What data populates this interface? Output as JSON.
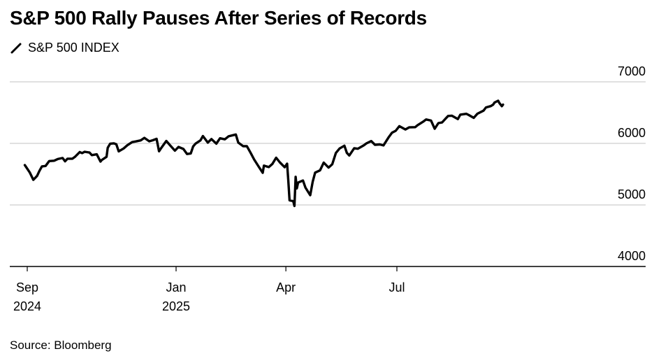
{
  "chart_data": {
    "type": "line",
    "title": "S&P 500 Rally Pauses After Series of Records",
    "xlabel": "",
    "ylabel": "",
    "ylim": [
      4000,
      7000
    ],
    "yticks": [
      4000,
      5000,
      6000,
      7000
    ],
    "y_axis_side": "right",
    "grid": "horizontal",
    "legend_position": "top-left",
    "xticks": [
      {
        "date": "2024-09-01",
        "line1": "Sep",
        "line2": "2024"
      },
      {
        "date": "2025-01-01",
        "line1": "Jan",
        "line2": "2025"
      },
      {
        "date": "2025-04-01",
        "line1": "Apr",
        "line2": ""
      },
      {
        "date": "2025-07-01",
        "line1": "Jul",
        "line2": ""
      }
    ],
    "series": [
      {
        "name": "S&P 500 INDEX",
        "color": "#000000",
        "points": [
          [
            "2024-08-30",
            5648
          ],
          [
            "2024-09-03",
            5529
          ],
          [
            "2024-09-06",
            5408
          ],
          [
            "2024-09-09",
            5471
          ],
          [
            "2024-09-11",
            5554
          ],
          [
            "2024-09-13",
            5626
          ],
          [
            "2024-09-16",
            5633
          ],
          [
            "2024-09-19",
            5713
          ],
          [
            "2024-09-23",
            5718
          ],
          [
            "2024-09-26",
            5745
          ],
          [
            "2024-09-30",
            5762
          ],
          [
            "2024-10-02",
            5709
          ],
          [
            "2024-10-04",
            5751
          ],
          [
            "2024-10-08",
            5751
          ],
          [
            "2024-10-10",
            5780
          ],
          [
            "2024-10-14",
            5859
          ],
          [
            "2024-10-16",
            5842
          ],
          [
            "2024-10-18",
            5864
          ],
          [
            "2024-10-22",
            5851
          ],
          [
            "2024-10-24",
            5809
          ],
          [
            "2024-10-28",
            5823
          ],
          [
            "2024-10-31",
            5705
          ],
          [
            "2024-11-01",
            5728
          ],
          [
            "2024-11-05",
            5782
          ],
          [
            "2024-11-06",
            5929
          ],
          [
            "2024-11-08",
            5995
          ],
          [
            "2024-11-11",
            6001
          ],
          [
            "2024-11-13",
            5985
          ],
          [
            "2024-11-15",
            5870
          ],
          [
            "2024-11-19",
            5917
          ],
          [
            "2024-11-22",
            5969
          ],
          [
            "2024-11-26",
            6021
          ],
          [
            "2024-11-29",
            6032
          ],
          [
            "2024-12-03",
            6049
          ],
          [
            "2024-12-06",
            6090
          ],
          [
            "2024-12-10",
            6034
          ],
          [
            "2024-12-13",
            6051
          ],
          [
            "2024-12-16",
            6074
          ],
          [
            "2024-12-18",
            5872
          ],
          [
            "2024-12-20",
            5930
          ],
          [
            "2024-12-24",
            6040
          ],
          [
            "2024-12-27",
            5970
          ],
          [
            "2024-12-31",
            5882
          ],
          [
            "2025-01-03",
            5942
          ],
          [
            "2025-01-07",
            5909
          ],
          [
            "2025-01-10",
            5827
          ],
          [
            "2025-01-13",
            5836
          ],
          [
            "2025-01-15",
            5950
          ],
          [
            "2025-01-17",
            5997
          ],
          [
            "2025-01-21",
            6049
          ],
          [
            "2025-01-23",
            6119
          ],
          [
            "2025-01-27",
            6012
          ],
          [
            "2025-01-30",
            6071
          ],
          [
            "2025-02-03",
            5995
          ],
          [
            "2025-02-06",
            6083
          ],
          [
            "2025-02-10",
            6066
          ],
          [
            "2025-02-13",
            6115
          ],
          [
            "2025-02-19",
            6144
          ],
          [
            "2025-02-21",
            6013
          ],
          [
            "2025-02-25",
            5955
          ],
          [
            "2025-02-28",
            5955
          ],
          [
            "2025-03-03",
            5850
          ],
          [
            "2025-03-06",
            5739
          ],
          [
            "2025-03-10",
            5614
          ],
          [
            "2025-03-13",
            5522
          ],
          [
            "2025-03-14",
            5639
          ],
          [
            "2025-03-18",
            5615
          ],
          [
            "2025-03-21",
            5667
          ],
          [
            "2025-03-24",
            5767
          ],
          [
            "2025-03-27",
            5693
          ],
          [
            "2025-03-31",
            5612
          ],
          [
            "2025-04-02",
            5671
          ],
          [
            "2025-04-03",
            5397
          ],
          [
            "2025-04-04",
            5074
          ],
          [
            "2025-04-07",
            5062
          ],
          [
            "2025-04-08",
            4983
          ],
          [
            "2025-04-09",
            5457
          ],
          [
            "2025-04-10",
            5268
          ],
          [
            "2025-04-11",
            5363
          ],
          [
            "2025-04-15",
            5397
          ],
          [
            "2025-04-17",
            5283
          ],
          [
            "2025-04-21",
            5158
          ],
          [
            "2025-04-23",
            5376
          ],
          [
            "2025-04-25",
            5525
          ],
          [
            "2025-04-29",
            5561
          ],
          [
            "2025-05-02",
            5687
          ],
          [
            "2025-05-06",
            5607
          ],
          [
            "2025-05-09",
            5660
          ],
          [
            "2025-05-12",
            5844
          ],
          [
            "2025-05-15",
            5917
          ],
          [
            "2025-05-19",
            5963
          ],
          [
            "2025-05-21",
            5845
          ],
          [
            "2025-05-23",
            5803
          ],
          [
            "2025-05-27",
            5922
          ],
          [
            "2025-05-30",
            5912
          ],
          [
            "2025-06-04",
            5971
          ],
          [
            "2025-06-06",
            6000
          ],
          [
            "2025-06-10",
            6038
          ],
          [
            "2025-06-13",
            5977
          ],
          [
            "2025-06-17",
            5983
          ],
          [
            "2025-06-20",
            5967
          ],
          [
            "2025-06-24",
            6092
          ],
          [
            "2025-06-27",
            6173
          ],
          [
            "2025-06-30",
            6205
          ],
          [
            "2025-07-03",
            6279
          ],
          [
            "2025-07-08",
            6226
          ],
          [
            "2025-07-11",
            6260
          ],
          [
            "2025-07-16",
            6264
          ],
          [
            "2025-07-18",
            6297
          ],
          [
            "2025-07-23",
            6359
          ],
          [
            "2025-07-25",
            6389
          ],
          [
            "2025-07-29",
            6371
          ],
          [
            "2025-08-01",
            6238
          ],
          [
            "2025-08-04",
            6330
          ],
          [
            "2025-08-07",
            6340
          ],
          [
            "2025-08-12",
            6445
          ],
          [
            "2025-08-15",
            6450
          ],
          [
            "2025-08-20",
            6395
          ],
          [
            "2025-08-22",
            6467
          ],
          [
            "2025-08-27",
            6481
          ],
          [
            "2025-08-29",
            6460
          ],
          [
            "2025-09-02",
            6415
          ],
          [
            "2025-09-05",
            6482
          ],
          [
            "2025-09-10",
            6532
          ],
          [
            "2025-09-12",
            6584
          ],
          [
            "2025-09-16",
            6606
          ],
          [
            "2025-09-18",
            6631
          ],
          [
            "2025-09-19",
            6664
          ],
          [
            "2025-09-22",
            6693
          ],
          [
            "2025-09-23",
            6656
          ],
          [
            "2025-09-25",
            6605
          ],
          [
            "2025-09-26",
            6630
          ]
        ]
      }
    ],
    "source": "Source: Bloomberg"
  }
}
